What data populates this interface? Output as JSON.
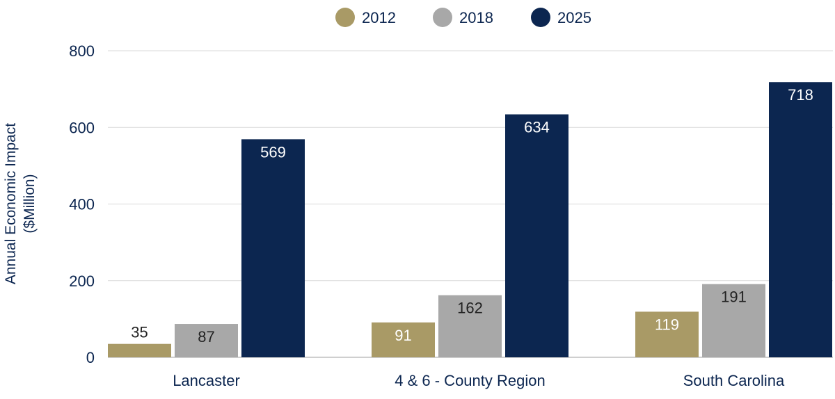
{
  "chart_data": {
    "type": "bar",
    "categories": [
      "Lancaster",
      "4 & 6 - County Region",
      "South Carolina"
    ],
    "series": [
      {
        "name": "2012",
        "values": [
          35,
          91,
          119
        ],
        "color": "#a99a66"
      },
      {
        "name": "2018",
        "values": [
          87,
          162,
          191
        ],
        "color": "#a8a8a8"
      },
      {
        "name": "2025",
        "values": [
          569,
          634,
          718
        ],
        "color": "#0c2650"
      }
    ],
    "ylabel_lines": [
      "Annual Economic Impact",
      "($Million)"
    ],
    "yticks": [
      "0",
      "200",
      "400",
      "600",
      "800"
    ],
    "ylim": [
      0,
      800
    ],
    "grid": true,
    "legend_position": "top-center",
    "colors": {
      "text": "#0c2650",
      "grid": "#d9d9d9",
      "axis": "#bfbfbf",
      "label_light": "#ffffff",
      "label_dark": "#222222"
    }
  }
}
